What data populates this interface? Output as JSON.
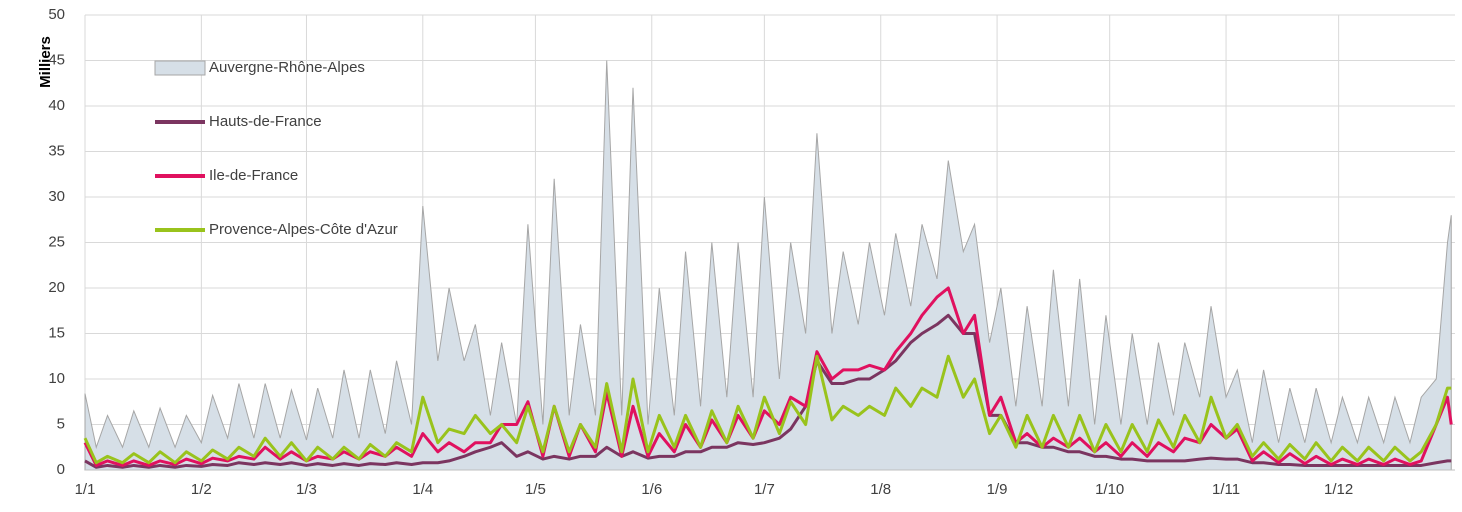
{
  "chart_data": {
    "type": "line",
    "y_label": "Milliers",
    "x": [
      0,
      3,
      6,
      10,
      13,
      17,
      20,
      24,
      27,
      31,
      34,
      38,
      41,
      45,
      48,
      52,
      55,
      59,
      62,
      66,
      69,
      73,
      76,
      80,
      83,
      87,
      90,
      94,
      97,
      101,
      104,
      108,
      111,
      115,
      118,
      122,
      125,
      129,
      132,
      136,
      139,
      143,
      146,
      150,
      153,
      157,
      160,
      164,
      167,
      171,
      174,
      178,
      181,
      185,
      188,
      192,
      195,
      199,
      202,
      206,
      209,
      213,
      216,
      220,
      223,
      227,
      230,
      234,
      237,
      241,
      244,
      248,
      251,
      255,
      258,
      262,
      265,
      269,
      272,
      276,
      279,
      283,
      286,
      290,
      293,
      297,
      300,
      304,
      307,
      311,
      314,
      318,
      321,
      325,
      328,
      332,
      335,
      339,
      342,
      346,
      349,
      353,
      356,
      360,
      363,
      364
    ],
    "xlim": [
      0,
      365
    ],
    "xticks": [
      {
        "value": 0,
        "label": "1/1"
      },
      {
        "value": 31,
        "label": "1/2"
      },
      {
        "value": 59,
        "label": "1/3"
      },
      {
        "value": 90,
        "label": "1/4"
      },
      {
        "value": 120,
        "label": "1/5"
      },
      {
        "value": 151,
        "label": "1/6"
      },
      {
        "value": 181,
        "label": "1/7"
      },
      {
        "value": 212,
        "label": "1/8"
      },
      {
        "value": 243,
        "label": "1/9"
      },
      {
        "value": 273,
        "label": "1/10"
      },
      {
        "value": 304,
        "label": "1/11"
      },
      {
        "value": 334,
        "label": "1/12"
      }
    ],
    "ylim": [
      0,
      50
    ],
    "yticks": [
      0,
      5,
      10,
      15,
      20,
      25,
      30,
      35,
      40,
      45,
      50
    ],
    "grid": true,
    "legend": "upper left",
    "series": [
      {
        "name": "Auvergne-Rhône-Alpes",
        "type": "area",
        "color": "#d6dfe7",
        "edge": "#a6a6a6",
        "values": [
          8.4,
          2.5,
          6,
          2.5,
          6.5,
          2.5,
          6.8,
          2.5,
          6,
          3,
          8.2,
          3.5,
          9.5,
          3.5,
          9.5,
          3.5,
          8.8,
          3.3,
          9,
          3.5,
          11,
          3.5,
          11,
          4,
          12,
          5,
          29,
          12,
          20,
          12,
          16,
          6,
          14,
          5,
          27,
          5,
          32,
          6,
          16,
          6,
          45,
          6,
          42,
          5,
          20,
          6,
          24,
          7,
          25,
          8,
          25,
          8,
          30,
          10,
          25,
          15,
          37,
          15,
          24,
          16,
          25,
          17,
          26,
          18,
          27,
          21,
          34,
          24,
          27,
          14,
          20,
          7,
          18,
          7,
          22,
          7,
          21,
          5,
          17,
          5,
          15,
          5,
          14,
          6,
          14,
          8,
          18,
          8,
          11,
          3,
          11,
          3,
          9,
          3,
          9,
          3,
          8,
          3,
          8,
          3,
          8,
          3,
          8,
          10,
          25,
          28
        ]
      },
      {
        "name": "Hauts-de-France",
        "type": "line",
        "color": "#7b3560",
        "values": [
          1,
          0.3,
          0.5,
          0.3,
          0.5,
          0.3,
          0.5,
          0.3,
          0.5,
          0.4,
          0.6,
          0.5,
          0.8,
          0.6,
          0.8,
          0.6,
          0.8,
          0.5,
          0.7,
          0.5,
          0.7,
          0.5,
          0.7,
          0.6,
          0.8,
          0.6,
          0.8,
          0.8,
          1,
          1.5,
          2,
          2.5,
          3,
          1.5,
          2,
          1.2,
          1.5,
          1.2,
          1.5,
          1.5,
          2.5,
          1.5,
          2,
          1.3,
          1.5,
          1.5,
          2,
          2,
          2.5,
          2.5,
          3,
          2.8,
          3,
          3.5,
          4.5,
          7,
          12,
          9.5,
          9.5,
          10,
          10,
          11,
          12,
          14,
          15,
          16,
          17,
          15,
          15,
          6,
          6,
          3,
          3,
          2.5,
          2.5,
          2,
          2,
          1.5,
          1.5,
          1.2,
          1.2,
          1,
          1,
          1,
          1,
          1.2,
          1.3,
          1.2,
          1.2,
          0.8,
          0.8,
          0.6,
          0.6,
          0.5,
          0.5,
          0.5,
          0.5,
          0.5,
          0.5,
          0.5,
          0.5,
          0.5,
          0.5,
          0.8,
          1,
          1
        ]
      },
      {
        "name": "Ile-de-France",
        "type": "line",
        "color": "#e0115f",
        "values": [
          3,
          0.5,
          1,
          0.5,
          1,
          0.5,
          1,
          0.6,
          1.2,
          0.7,
          1.3,
          1,
          1.5,
          1.2,
          2.5,
          1.2,
          2,
          1,
          1.5,
          1.2,
          2,
          1.2,
          2,
          1.5,
          2.5,
          1.5,
          4,
          2,
          3,
          2,
          3,
          3,
          5,
          5,
          7.5,
          1.5,
          7,
          1.5,
          5,
          2,
          8.5,
          1.5,
          7,
          1.5,
          4,
          2,
          5,
          2.5,
          5.5,
          3,
          6,
          3.5,
          6.5,
          5,
          8,
          7,
          13,
          10,
          11,
          11,
          11.5,
          11,
          13,
          15,
          17,
          19,
          20,
          15,
          17,
          6,
          8,
          3,
          4,
          2.5,
          3.5,
          2.5,
          3.5,
          2,
          3,
          1.5,
          3,
          1.5,
          3,
          2,
          3.5,
          3,
          5,
          3.5,
          4.5,
          1,
          2,
          0.8,
          1.8,
          0.7,
          1.5,
          0.6,
          1.2,
          0.6,
          1.2,
          0.6,
          1.2,
          0.6,
          1,
          5,
          8,
          5
        ]
      },
      {
        "name": "Provence-Alpes-Côte d'Azur",
        "type": "line",
        "color": "#99c31c",
        "values": [
          3.5,
          0.8,
          1.5,
          0.8,
          1.8,
          0.8,
          2,
          0.8,
          2,
          1,
          2.2,
          1.2,
          2.5,
          1.5,
          3.5,
          1.5,
          3,
          1,
          2.5,
          1.2,
          2.5,
          1.2,
          2.8,
          1.5,
          3,
          2,
          8,
          3,
          4.5,
          4,
          6,
          4,
          5,
          3,
          7,
          2,
          7,
          2,
          5,
          2.5,
          9.5,
          2,
          10,
          2,
          6,
          2.5,
          6,
          2.5,
          6.5,
          3,
          7,
          3.5,
          8,
          4,
          7.5,
          5,
          12.5,
          5.5,
          7,
          6,
          7,
          6,
          9,
          7,
          9,
          8,
          12.5,
          8,
          10,
          4,
          6,
          2.5,
          6,
          2.5,
          6,
          2.5,
          6,
          2,
          5,
          2,
          5,
          2,
          5.5,
          2.5,
          6,
          3,
          8,
          3.5,
          5,
          1.5,
          3,
          1.2,
          2.8,
          1.2,
          3,
          1,
          2.5,
          1,
          2.5,
          1,
          2.5,
          1,
          2,
          5,
          9,
          9
        ]
      }
    ]
  }
}
